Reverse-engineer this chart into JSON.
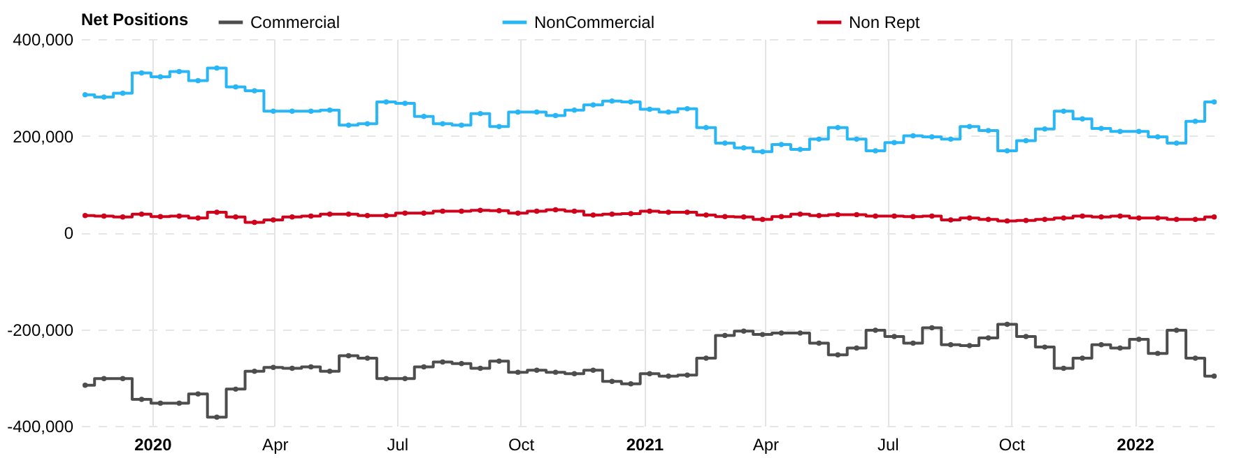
{
  "chart_data": {
    "type": "step",
    "legend_title": "Net Positions",
    "legend": "top",
    "marker": "circle",
    "grid": true,
    "line_style": "solid",
    "x": [
      "2019-11-12",
      "2019-11-26",
      "2019-12-10",
      "2019-12-24",
      "2020-01-07",
      "2020-01-21",
      "2020-02-04",
      "2020-02-18",
      "2020-03-03",
      "2020-03-17",
      "2020-03-31",
      "2020-04-14",
      "2020-04-28",
      "2020-05-12",
      "2020-05-26",
      "2020-06-09",
      "2020-06-23",
      "2020-07-07",
      "2020-07-21",
      "2020-08-04",
      "2020-08-18",
      "2020-09-01",
      "2020-09-15",
      "2020-09-29",
      "2020-10-13",
      "2020-10-27",
      "2020-11-10",
      "2020-11-24",
      "2020-12-08",
      "2020-12-22",
      "2021-01-05",
      "2021-01-19",
      "2021-02-02",
      "2021-02-16",
      "2021-03-02",
      "2021-03-16",
      "2021-03-30",
      "2021-04-13",
      "2021-04-27",
      "2021-05-11",
      "2021-05-25",
      "2021-06-08",
      "2021-06-22",
      "2021-07-06",
      "2021-07-20",
      "2021-08-03",
      "2021-08-17",
      "2021-08-31",
      "2021-09-14",
      "2021-09-28",
      "2021-10-12",
      "2021-10-26",
      "2021-11-09",
      "2021-11-23",
      "2021-12-07",
      "2021-12-21",
      "2022-01-04",
      "2022-01-18",
      "2022-02-01",
      "2022-02-15",
      "2022-03-01"
    ],
    "series": [
      {
        "name": "Commercial",
        "color": "#4d4d4d",
        "values": [
          -316000,
          -302000,
          -302000,
          -345000,
          -353000,
          -353000,
          -334000,
          -382000,
          -324000,
          -287000,
          -279000,
          -281000,
          -278000,
          -287000,
          -255000,
          -260000,
          -302000,
          -302000,
          -278000,
          -268000,
          -271000,
          -281000,
          -266000,
          -289000,
          -285000,
          -289000,
          -292000,
          -285000,
          -308000,
          -313000,
          -292000,
          -297000,
          -295000,
          -260000,
          -213000,
          -204000,
          -211000,
          -208000,
          -208000,
          -229000,
          -253000,
          -239000,
          -202000,
          -215000,
          -229000,
          -197000,
          -232000,
          -234000,
          -218000,
          -190000,
          -215000,
          -237000,
          -281000,
          -260000,
          -232000,
          -239000,
          -221000,
          -250000,
          -202000,
          -260000,
          -297000
        ]
      },
      {
        "name": "NonCommercial",
        "color": "#29b6f6",
        "values": [
          285000,
          280000,
          288000,
          330000,
          322000,
          333000,
          314000,
          340000,
          301000,
          293000,
          251000,
          251000,
          251000,
          253000,
          222000,
          225000,
          270000,
          267000,
          240000,
          225000,
          222000,
          246000,
          219000,
          249000,
          249000,
          242000,
          253000,
          264000,
          272000,
          270000,
          255000,
          249000,
          256000,
          217000,
          185000,
          175000,
          167000,
          182000,
          172000,
          193000,
          217000,
          193000,
          169000,
          186000,
          200000,
          198000,
          193000,
          219000,
          211000,
          169000,
          190000,
          214000,
          251000,
          235000,
          215000,
          209000,
          209000,
          198000,
          185000,
          230000,
          270000
        ]
      },
      {
        "name": "Non Rept",
        "color": "#d0021b",
        "values": [
          35000,
          34000,
          32000,
          38000,
          33000,
          34000,
          30000,
          42000,
          32000,
          21000,
          26000,
          32000,
          34000,
          38000,
          38000,
          35000,
          35000,
          40000,
          40000,
          44000,
          44000,
          46000,
          45000,
          40000,
          44000,
          47000,
          44000,
          36000,
          38000,
          39000,
          44000,
          42000,
          42000,
          36000,
          33000,
          32000,
          27000,
          33000,
          38000,
          35000,
          37000,
          37000,
          34000,
          34000,
          33000,
          34000,
          26000,
          30000,
          27000,
          24000,
          25000,
          27000,
          30000,
          34000,
          32000,
          34000,
          30000,
          30000,
          27000,
          27000,
          32000
        ]
      }
    ],
    "xlim": [
      "2019-11-09",
      "2022-03-07"
    ],
    "xticks": [
      {
        "value": "2020-01-01",
        "label": "2020"
      },
      {
        "value": "2020-04-01",
        "label": "Apr"
      },
      {
        "value": "2020-07-01",
        "label": "Jul"
      },
      {
        "value": "2020-10-01",
        "label": "Oct"
      },
      {
        "value": "2021-01-01",
        "label": "2021"
      },
      {
        "value": "2021-04-01",
        "label": "Apr"
      },
      {
        "value": "2021-07-01",
        "label": "Jul"
      },
      {
        "value": "2021-10-01",
        "label": "Oct"
      },
      {
        "value": "2022-01-01",
        "label": "2022"
      }
    ],
    "ylim": [
      -400000,
      400000
    ],
    "yticks": [
      {
        "value": -400000,
        "label": "-400,000"
      },
      {
        "value": -200000,
        "label": "-200,000"
      },
      {
        "value": 0,
        "label": "0"
      },
      {
        "value": 200000,
        "label": "200,000"
      },
      {
        "value": 400000,
        "label": "400,000"
      }
    ]
  }
}
